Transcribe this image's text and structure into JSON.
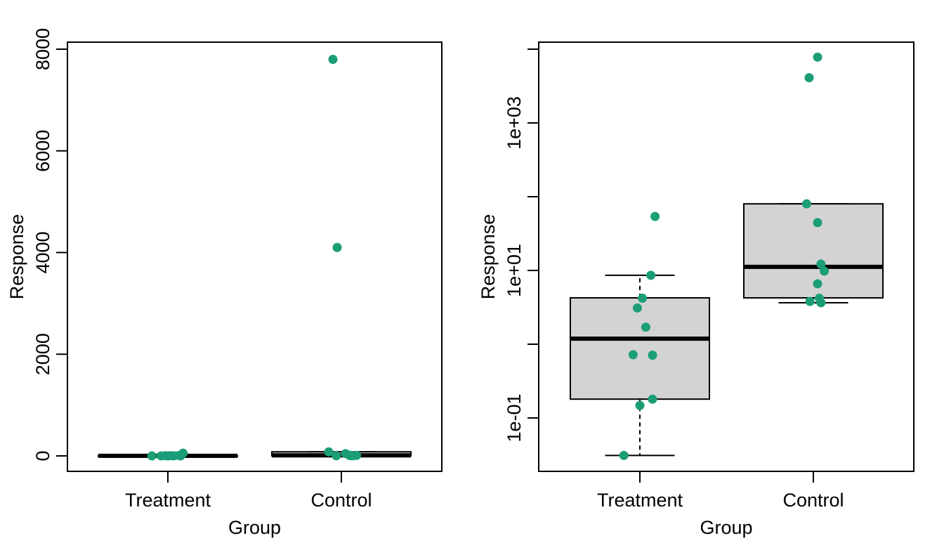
{
  "chart_data": [
    {
      "type": "box",
      "panel": "left",
      "scale": "linear",
      "xlabel": "Group",
      "ylabel": "Response",
      "categories": [
        "Treatment",
        "Control"
      ],
      "yticks": [
        0,
        2000,
        4000,
        6000,
        8000
      ],
      "ytick_labels": [
        "0",
        "2000",
        "4000",
        "6000",
        "8000"
      ],
      "ylim": [
        -300,
        8150
      ],
      "boxes": [
        {
          "group": "Treatment",
          "lower_whisker": 0.031,
          "q1": 0.18,
          "median": 1.19,
          "q3": 4.25,
          "upper_whisker": 8.6
        },
        {
          "group": "Control",
          "lower_whisker": 3.65,
          "q1": 4.25,
          "median": 11.2,
          "q3": 80,
          "upper_whisker": 80
        }
      ],
      "points": [
        {
          "group": "Treatment",
          "values": [
            54,
            8.6,
            4.2,
            3.1,
            1.7,
            0.72,
            0.71,
            0.18,
            0.148,
            0.031
          ],
          "jitter": [
            0.18,
            0.13,
            0.03,
            -0.03,
            0.07,
            -0.08,
            0.15,
            0.15,
            0.0,
            -0.19
          ]
        },
        {
          "group": "Control",
          "values": [
            7800,
            4100,
            80,
            44.5,
            12.2,
            9.8,
            6.6,
            4.2,
            3.8,
            3.65
          ],
          "jitter": [
            -0.1,
            -0.05,
            -0.15,
            0.05,
            0.1,
            0.18,
            0.1,
            0.12,
            -0.06,
            0.14
          ]
        }
      ],
      "point_color": "#1B9E77",
      "box_fill": "#D3D3D3"
    },
    {
      "type": "box",
      "panel": "right",
      "scale": "log10",
      "xlabel": "Group",
      "ylabel": "Response",
      "categories": [
        "Treatment",
        "Control"
      ],
      "yticks": [
        10000,
        1000,
        100,
        10,
        1,
        0.1
      ],
      "ytick_labels": [
        "",
        "1e+03",
        "",
        "1e+01",
        "",
        "1e-01"
      ],
      "ylim": [
        0.0165,
        14000
      ],
      "boxes": [
        {
          "group": "Treatment",
          "lower_whisker": 0.031,
          "q1": 0.18,
          "median": 1.19,
          "q3": 4.25,
          "upper_whisker": 8.6
        },
        {
          "group": "Control",
          "lower_whisker": 3.65,
          "q1": 4.25,
          "median": 11.2,
          "q3": 80,
          "upper_whisker": 80
        }
      ],
      "points": [
        {
          "group": "Treatment",
          "values": [
            54,
            8.6,
            4.2,
            3.1,
            1.7,
            0.72,
            0.71,
            0.18,
            0.148,
            0.031
          ],
          "jitter": [
            0.18,
            0.13,
            0.03,
            -0.03,
            0.07,
            -0.08,
            0.15,
            0.15,
            0.0,
            -0.19
          ]
        },
        {
          "group": "Control",
          "values": [
            7800,
            4100,
            80,
            44.5,
            12.2,
            9.8,
            6.6,
            4.2,
            3.8,
            3.65
          ],
          "jitter": [
            0.05,
            -0.05,
            -0.08,
            0.05,
            0.09,
            0.13,
            0.05,
            0.07,
            -0.04,
            0.09
          ]
        }
      ],
      "point_color": "#1B9E77",
      "box_fill": "#D3D3D3"
    }
  ]
}
